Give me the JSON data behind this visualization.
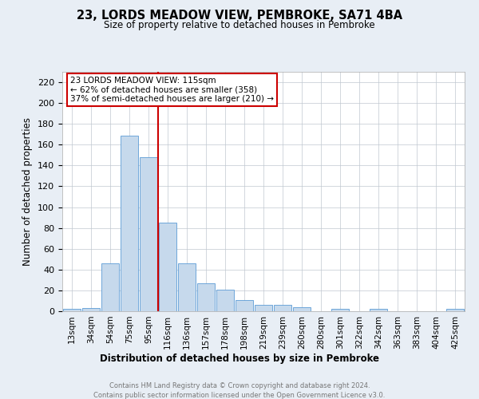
{
  "title": "23, LORDS MEADOW VIEW, PEMBROKE, SA71 4BA",
  "subtitle": "Size of property relative to detached houses in Pembroke",
  "xlabel": "Distribution of detached houses by size in Pembroke",
  "ylabel": "Number of detached properties",
  "categories": [
    "13sqm",
    "34sqm",
    "54sqm",
    "75sqm",
    "95sqm",
    "116sqm",
    "136sqm",
    "157sqm",
    "178sqm",
    "198sqm",
    "219sqm",
    "239sqm",
    "260sqm",
    "280sqm",
    "301sqm",
    "322sqm",
    "342sqm",
    "363sqm",
    "383sqm",
    "404sqm",
    "425sqm"
  ],
  "values": [
    2,
    3,
    46,
    169,
    148,
    85,
    46,
    27,
    21,
    11,
    6,
    6,
    4,
    0,
    2,
    0,
    2,
    0,
    0,
    0,
    2
  ],
  "bar_color": "#c6d9ec",
  "bar_edge_color": "#5b9bd5",
  "vline_color": "#cc0000",
  "box_edge_color": "#cc0000",
  "vline_position": 5,
  "ylim": [
    0,
    230
  ],
  "yticks": [
    0,
    20,
    40,
    60,
    80,
    100,
    120,
    140,
    160,
    180,
    200,
    220
  ],
  "annotation_line1": "23 LORDS MEADOW VIEW: 115sqm",
  "annotation_line2": "← 62% of detached houses are smaller (358)",
  "annotation_line3": "37% of semi-detached houses are larger (210) →",
  "footer_line1": "Contains HM Land Registry data © Crown copyright and database right 2024.",
  "footer_line2": "Contains public sector information licensed under the Open Government Licence v3.0.",
  "background_color": "#e8eef5",
  "plot_bg_color": "#ffffff",
  "grid_color": "#c0c8d0"
}
